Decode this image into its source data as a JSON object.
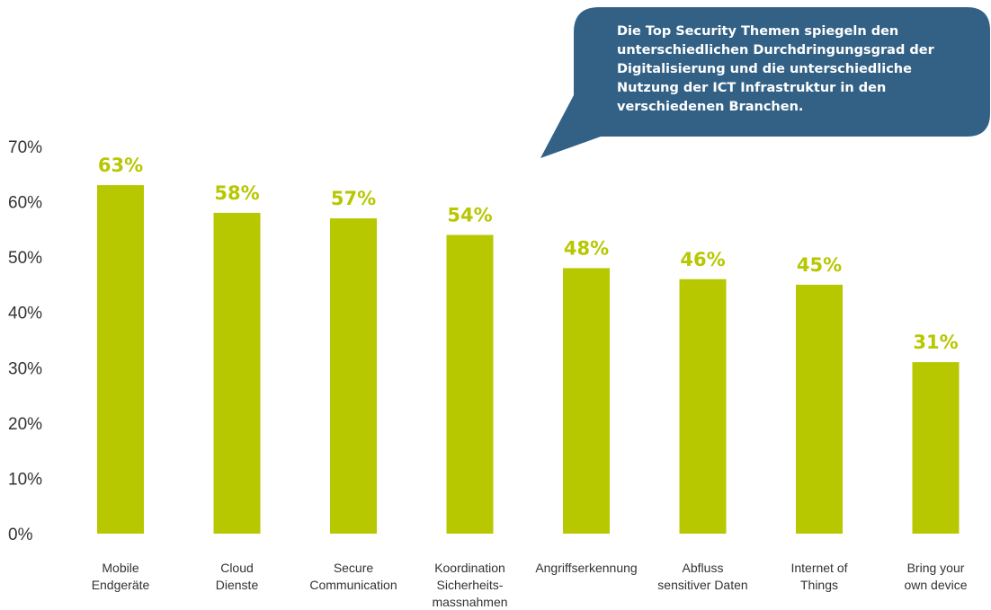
{
  "colors": {
    "bar": "#b7c700",
    "label": "#b7c700",
    "callout_bg": "#336186",
    "callout_text": "#ffffff",
    "axis_text": "#333333"
  },
  "callout": {
    "lines": [
      "Die Top Security Themen spiegeln den",
      "unterschiedlichen Durchdringungsgrad der",
      "Digitalisierung und die unterschiedliche",
      "Nutzung der ICT Infrastruktur in den",
      "verschiedenen Branchen."
    ]
  },
  "chart_data": {
    "type": "bar",
    "title": "",
    "xlabel": "",
    "ylabel": "",
    "ylim": [
      0,
      70
    ],
    "grid": false,
    "yticks": [
      "0%",
      "10%",
      "20%",
      "30%",
      "40%",
      "50%",
      "60%",
      "70%"
    ],
    "categories": [
      [
        "Mobile",
        "Endgeräte"
      ],
      [
        "Cloud",
        "Dienste"
      ],
      [
        "Secure",
        "Communication"
      ],
      [
        "Koordination",
        "Sicherheits-",
        "massnahmen"
      ],
      [
        "Angriffserkennung"
      ],
      [
        "Abfluss",
        "sensitiver Daten"
      ],
      [
        "Internet of",
        "Things"
      ],
      [
        "Bring your",
        "own device"
      ]
    ],
    "values": [
      63,
      58,
      57,
      54,
      48,
      46,
      45,
      31
    ],
    "value_labels": [
      "63%",
      "58%",
      "57%",
      "54%",
      "48%",
      "46%",
      "45%",
      "31%"
    ]
  }
}
